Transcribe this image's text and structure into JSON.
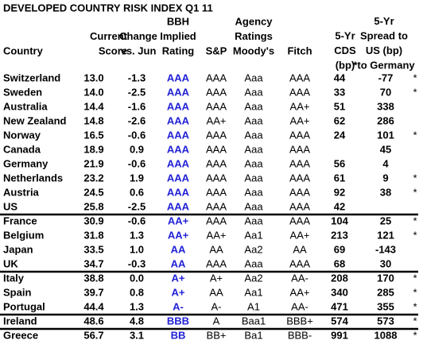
{
  "title": "DEVELOPED COUNTRY RISK INDEX Q1 11",
  "span_header": [
    "Agency",
    "Ratings"
  ],
  "columns": [
    [
      "Country"
    ],
    [
      "Current",
      "Score"
    ],
    [
      "Change",
      "vs. Jun"
    ],
    [
      "BBH",
      "Implied",
      "Rating"
    ],
    [
      "S&P"
    ],
    [
      "Moody's"
    ],
    [
      "Fitch"
    ],
    [
      "5-Yr",
      "CDS",
      "(bp)"
    ],
    [
      "5-Yr",
      "Spread to",
      "US (bp)",
      "*to Germany"
    ]
  ],
  "groups": [
    [
      [
        "Switzerland",
        "13.0",
        "-1.3",
        "AAA",
        "AAA",
        "Aaa",
        "AAA",
        "44",
        "-77",
        "*"
      ],
      [
        "Sweden",
        "14.0",
        "-2.5",
        "AAA",
        "AAA",
        "Aaa",
        "AAA",
        "33",
        "70",
        "*"
      ],
      [
        "Australia",
        "14.4",
        "-1.6",
        "AAA",
        "AAA",
        "Aaa",
        "AA+",
        "51",
        "338",
        null
      ],
      [
        "New Zealand",
        "14.8",
        "-2.6",
        "AAA",
        "AA+",
        "Aaa",
        "AA+",
        "62",
        "286",
        null
      ],
      [
        "Norway",
        "16.5",
        "-0.6",
        "AAA",
        "AAA",
        "Aaa",
        "AAA",
        "24",
        "101",
        "*"
      ],
      [
        "Canada",
        "18.9",
        "0.9",
        "AAA",
        "AAA",
        "Aaa",
        "AAA",
        null,
        "45",
        null
      ],
      [
        "Germany",
        "21.9",
        "-0.6",
        "AAA",
        "AAA",
        "Aaa",
        "AAA",
        "56",
        "4",
        null
      ],
      [
        "Netherlands",
        "23.2",
        "1.9",
        "AAA",
        "AAA",
        "Aaa",
        "AAA",
        "61",
        "9",
        "*"
      ],
      [
        "Austria",
        "24.5",
        "0.6",
        "AAA",
        "AAA",
        "Aaa",
        "AAA",
        "92",
        "38",
        "*"
      ],
      [
        "US",
        "25.8",
        "-2.5",
        "AAA",
        "AAA",
        "Aaa",
        "AAA",
        "42",
        null,
        null
      ]
    ],
    [
      [
        "France",
        "30.9",
        "-0.6",
        "AA+",
        "AAA",
        "Aaa",
        "AAA",
        "104",
        "25",
        "*"
      ],
      [
        "Belgium",
        "31.8",
        "1.3",
        "AA+",
        "AA+",
        "Aa1",
        "AA+",
        "213",
        "121",
        "*"
      ],
      [
        "Japan",
        "33.5",
        "1.0",
        "AA",
        "AA",
        "Aa2",
        "AA",
        "69",
        "-143",
        null
      ],
      [
        "UK",
        "34.7",
        "-0.3",
        "AA",
        "AAA",
        "Aaa",
        "AAA",
        "68",
        "30",
        null
      ]
    ],
    [
      [
        "Italy",
        "38.8",
        "0.0",
        "A+",
        "A+",
        "Aa2",
        "AA-",
        "208",
        "170",
        "*"
      ],
      [
        "Spain",
        "39.7",
        "0.8",
        "A+",
        "AA",
        "Aa1",
        "AA+",
        "340",
        "285",
        "*"
      ],
      [
        "Portugal",
        "44.4",
        "1.3",
        "A-",
        "A-",
        "A1",
        "AA-",
        "471",
        "355",
        "*"
      ]
    ],
    [
      [
        "Ireland",
        "48.6",
        "4.8",
        "BBB",
        "A",
        "Baa1",
        "BBB+",
        "574",
        "573",
        "*"
      ]
    ],
    [
      [
        "Greece",
        "56.7",
        "3.1",
        "BB",
        "BB+",
        "Ba1",
        "BBB-",
        "991",
        "1088",
        "*"
      ]
    ]
  ]
}
